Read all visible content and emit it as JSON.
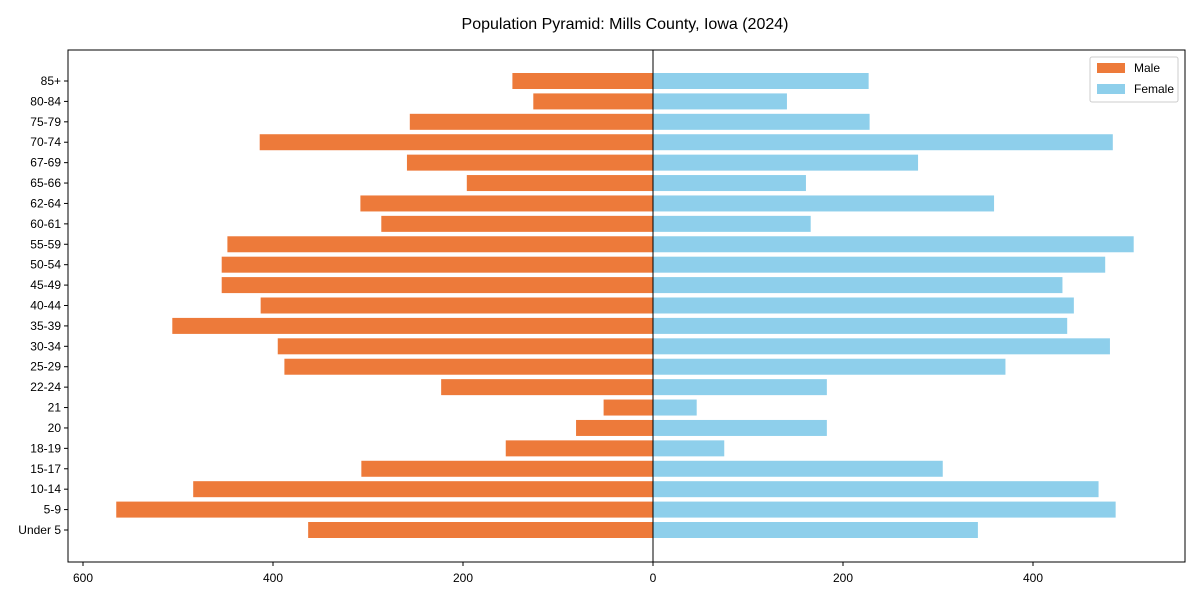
{
  "chart_data": {
    "type": "bar",
    "orientation": "horizontal",
    "title": "Population Pyramid: Mills County, Iowa (2024)",
    "xlabel": "",
    "ylabel": "",
    "xlim": [
      -616,
      560
    ],
    "xticks": [
      -600,
      -400,
      -200,
      0,
      200,
      400
    ],
    "xtick_labels": [
      "600",
      "400",
      "200",
      "0",
      "200",
      "400"
    ],
    "grid": false,
    "legend_position": "top-right",
    "categories": [
      "Under 5",
      "5-9",
      "10-14",
      "15-17",
      "18-19",
      "20",
      "21",
      "22-24",
      "25-29",
      "30-34",
      "35-39",
      "40-44",
      "45-49",
      "50-54",
      "55-59",
      "60-61",
      "62-64",
      "65-66",
      "67-69",
      "70-74",
      "75-79",
      "80-84",
      "85+"
    ],
    "series": [
      {
        "name": "Male",
        "color": "#ED7A3A",
        "values": [
          363,
          565,
          484,
          307,
          155,
          81,
          52,
          223,
          388,
          395,
          506,
          413,
          454,
          454,
          448,
          286,
          308,
          196,
          259,
          414,
          256,
          126,
          148
        ]
      },
      {
        "name": "Female",
        "color": "#8ECFEB",
        "values": [
          342,
          487,
          469,
          305,
          75,
          183,
          46,
          183,
          371,
          481,
          436,
          443,
          431,
          476,
          506,
          166,
          359,
          161,
          279,
          484,
          228,
          141,
          227
        ]
      }
    ]
  }
}
